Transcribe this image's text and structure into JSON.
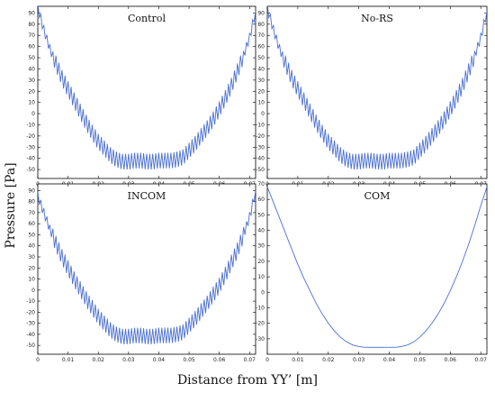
{
  "figure": {
    "ylabel": "Pressure [Pa]",
    "xlabel": "Distance from YY’ [m]"
  },
  "chart_data": [
    {
      "type": "line",
      "title": "Control",
      "xlim": [
        0,
        0.072
      ],
      "ylim": [
        -58,
        96
      ],
      "x_ticks": [
        0,
        0.01,
        0.02,
        0.03,
        0.04,
        0.05,
        0.06,
        0.07
      ],
      "y_ticks": [
        -50,
        -40,
        -30,
        -20,
        -10,
        0,
        10,
        20,
        30,
        40,
        50,
        60,
        70,
        80,
        90
      ],
      "color": "#4a6fd3",
      "oscillating": true,
      "series": [
        {
          "x": [
            0,
            0.002,
            0.004,
            0.006,
            0.008,
            0.01,
            0.012,
            0.014,
            0.016,
            0.018,
            0.02,
            0.022,
            0.024,
            0.026,
            0.028,
            0.03,
            0.032,
            0.034,
            0.036,
            0.038,
            0.04,
            0.042,
            0.044,
            0.046,
            0.048,
            0.05,
            0.052,
            0.054,
            0.056,
            0.058,
            0.06,
            0.062,
            0.064,
            0.066,
            0.068,
            0.07,
            0.072
          ],
          "y": [
            95,
            75,
            58,
            45,
            32,
            22,
            12,
            2,
            -8,
            -17,
            -25,
            -31,
            -37,
            -41,
            -43,
            -43,
            -42,
            -42,
            -43,
            -43,
            -42,
            -42,
            -42,
            -41,
            -39,
            -33,
            -27,
            -20,
            -13,
            -5,
            4,
            14,
            25,
            38,
            52,
            68,
            92
          ]
        }
      ]
    },
    {
      "type": "line",
      "title": "No-RS",
      "xlim": [
        0,
        0.072
      ],
      "ylim": [
        -58,
        96
      ],
      "x_ticks": [
        0,
        0.01,
        0.02,
        0.03,
        0.04,
        0.05,
        0.06,
        0.07
      ],
      "y_ticks": [
        -50,
        -40,
        -30,
        -20,
        -10,
        0,
        10,
        20,
        30,
        40,
        50,
        60,
        70,
        80,
        90
      ],
      "color": "#4a6fd3",
      "oscillating": true,
      "series": [
        {
          "x": [
            0,
            0.002,
            0.004,
            0.006,
            0.008,
            0.01,
            0.012,
            0.014,
            0.016,
            0.018,
            0.02,
            0.022,
            0.024,
            0.026,
            0.028,
            0.03,
            0.032,
            0.034,
            0.036,
            0.038,
            0.04,
            0.042,
            0.044,
            0.046,
            0.048,
            0.05,
            0.052,
            0.054,
            0.056,
            0.058,
            0.06,
            0.062,
            0.064,
            0.066,
            0.068,
            0.07,
            0.072
          ],
          "y": [
            95,
            75,
            58,
            45,
            32,
            22,
            12,
            2,
            -8,
            -17,
            -25,
            -31,
            -37,
            -41,
            -43,
            -43,
            -42,
            -42,
            -43,
            -43,
            -42,
            -42,
            -42,
            -41,
            -39,
            -33,
            -27,
            -20,
            -13,
            -5,
            4,
            14,
            25,
            38,
            52,
            68,
            92
          ]
        }
      ]
    },
    {
      "type": "line",
      "title": "INCOM",
      "xlim": [
        0,
        0.072
      ],
      "ylim": [
        -58,
        96
      ],
      "x_ticks": [
        0,
        0.01,
        0.02,
        0.03,
        0.04,
        0.05,
        0.06,
        0.07
      ],
      "y_ticks": [
        -50,
        -40,
        -30,
        -20,
        -10,
        0,
        10,
        20,
        30,
        40,
        50,
        60,
        70,
        80,
        90
      ],
      "color": "#4a6fd3",
      "oscillating": true,
      "series": [
        {
          "x": [
            0,
            0.002,
            0.004,
            0.006,
            0.008,
            0.01,
            0.012,
            0.014,
            0.016,
            0.018,
            0.02,
            0.022,
            0.024,
            0.026,
            0.028,
            0.03,
            0.032,
            0.034,
            0.036,
            0.038,
            0.04,
            0.042,
            0.044,
            0.046,
            0.048,
            0.05,
            0.052,
            0.054,
            0.056,
            0.058,
            0.06,
            0.062,
            0.064,
            0.066,
            0.068,
            0.07,
            0.072
          ],
          "y": [
            85,
            70,
            55,
            42,
            30,
            20,
            10,
            1,
            -8,
            -16,
            -24,
            -30,
            -36,
            -40,
            -42,
            -42,
            -41,
            -41,
            -42,
            -42,
            -41,
            -41,
            -41,
            -40,
            -38,
            -32,
            -26,
            -19,
            -12,
            -4,
            4,
            14,
            25,
            36,
            50,
            66,
            90
          ]
        }
      ]
    },
    {
      "type": "line",
      "title": "COM",
      "xlim": [
        0,
        0.072
      ],
      "ylim": [
        -40,
        70
      ],
      "x_ticks": [
        0,
        0.01,
        0.02,
        0.03,
        0.04,
        0.05,
        0.06,
        0.07
      ],
      "y_ticks": [
        -30,
        -20,
        -10,
        0,
        10,
        20,
        30,
        40,
        50,
        60,
        70
      ],
      "color": "#4a6fd3",
      "oscillating": false,
      "series": [
        {
          "x": [
            0,
            0.002,
            0.004,
            0.006,
            0.008,
            0.01,
            0.012,
            0.014,
            0.016,
            0.018,
            0.02,
            0.022,
            0.024,
            0.026,
            0.028,
            0.03,
            0.032,
            0.034,
            0.036,
            0.038,
            0.04,
            0.042,
            0.044,
            0.046,
            0.048,
            0.05,
            0.052,
            0.054,
            0.056,
            0.058,
            0.06,
            0.062,
            0.064,
            0.066,
            0.068,
            0.07,
            0.072
          ],
          "y": [
            68,
            58,
            48,
            38,
            28,
            18,
            9,
            1,
            -7,
            -14,
            -20,
            -25,
            -29,
            -32,
            -34,
            -35,
            -35.5,
            -35.5,
            -35.5,
            -35.5,
            -35.5,
            -35.5,
            -35,
            -34,
            -32,
            -29,
            -25,
            -20,
            -14,
            -7,
            1,
            10,
            20,
            31,
            43,
            56,
            68
          ]
        }
      ]
    }
  ]
}
